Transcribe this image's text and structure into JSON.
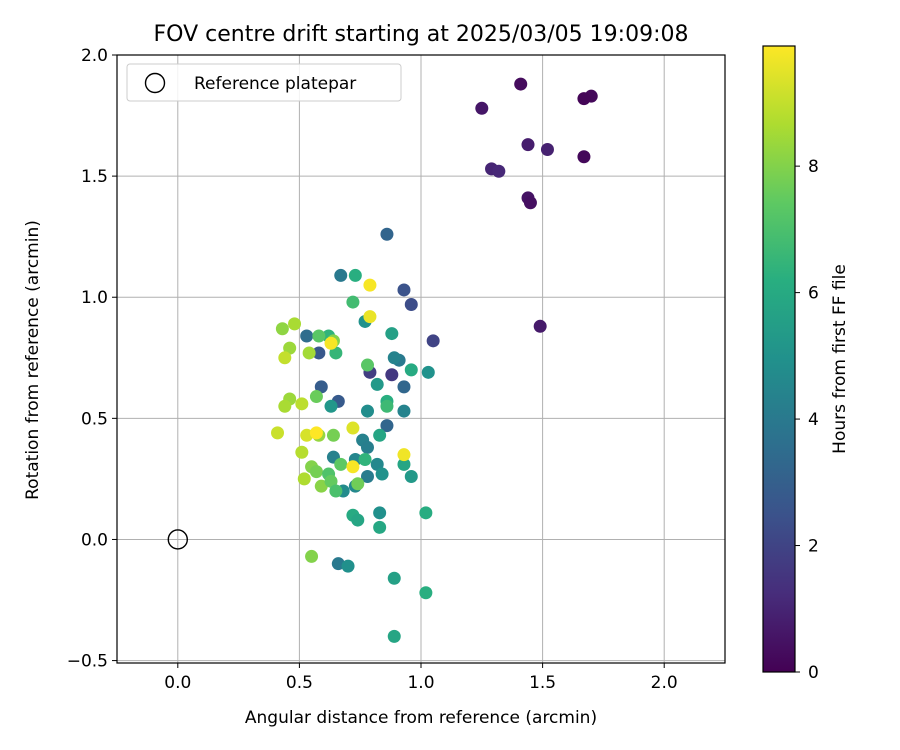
{
  "chart_data": {
    "type": "scatter",
    "title": "FOV centre drift starting at 2025/03/05 19:09:08",
    "xlabel": "Angular distance from reference (arcmin)",
    "ylabel": "Rotation from reference (arcmin)",
    "xlim": [
      -0.25,
      2.25
    ],
    "ylim": [
      -0.51,
      2.0
    ],
    "xticks": [
      0.0,
      0.5,
      1.0,
      1.5,
      2.0
    ],
    "xtick_labels": [
      "0.0",
      "0.5",
      "1.0",
      "1.5",
      "2.0"
    ],
    "yticks": [
      -0.5,
      0.0,
      0.5,
      1.0,
      1.5,
      2.0
    ],
    "ytick_labels": [
      "−0.5",
      "0.0",
      "0.5",
      "1.0",
      "1.5",
      "2.0"
    ],
    "grid": true,
    "legend": {
      "position": "top-left",
      "entries": [
        {
          "label": "Reference platepar",
          "marker": "open-circle"
        }
      ]
    },
    "reference_point": {
      "x": 0.0,
      "y": 0.0
    },
    "colorbar": {
      "label": "Hours from first FF file",
      "colormap": "viridis",
      "range": [
        0,
        9.9
      ],
      "ticks": [
        0,
        2,
        4,
        6,
        8
      ],
      "tick_labels": [
        "0",
        "2",
        "4",
        "6",
        "8"
      ]
    },
    "series": [
      {
        "points": [
          [
            1.41,
            1.88,
            0.3
          ],
          [
            1.7,
            1.83,
            0.2
          ],
          [
            1.67,
            1.82,
            0.1
          ],
          [
            1.25,
            1.78,
            0.6
          ],
          [
            1.44,
            1.63,
            0.8
          ],
          [
            1.52,
            1.61,
            0.9
          ],
          [
            1.67,
            1.58,
            0.2
          ],
          [
            1.29,
            1.53,
            1.0
          ],
          [
            1.32,
            1.52,
            1.1
          ],
          [
            1.44,
            1.41,
            0.5
          ],
          [
            1.45,
            1.39,
            0.4
          ],
          [
            1.49,
            0.88,
            0.7
          ],
          [
            0.86,
            1.26,
            3.2
          ],
          [
            0.93,
            1.03,
            2.5
          ],
          [
            0.96,
            0.97,
            2.3
          ],
          [
            1.05,
            0.82,
            2.0
          ],
          [
            0.53,
            0.84,
            3.5
          ],
          [
            0.58,
            0.77,
            2.7
          ],
          [
            0.88,
            0.68,
            1.6
          ],
          [
            0.79,
            0.69,
            1.8
          ],
          [
            0.59,
            0.63,
            2.9
          ],
          [
            0.93,
            0.63,
            3.3
          ],
          [
            0.66,
            0.57,
            2.8
          ],
          [
            0.86,
            0.47,
            3.2
          ],
          [
            0.67,
            1.09,
            4.0
          ],
          [
            0.73,
            1.09,
            6.2
          ],
          [
            0.72,
            0.98,
            6.8
          ],
          [
            0.77,
            0.9,
            5.0
          ],
          [
            0.88,
            0.85,
            5.6
          ],
          [
            0.91,
            0.74,
            4.0
          ],
          [
            0.89,
            0.75,
            4.4
          ],
          [
            0.96,
            0.7,
            6.0
          ],
          [
            1.03,
            0.69,
            5.0
          ],
          [
            0.82,
            0.64,
            5.3
          ],
          [
            0.86,
            0.57,
            6.2
          ],
          [
            0.86,
            0.55,
            6.7
          ],
          [
            0.78,
            0.53,
            4.8
          ],
          [
            0.93,
            0.53,
            4.4
          ],
          [
            0.83,
            0.43,
            5.8
          ],
          [
            0.76,
            0.41,
            4.3
          ],
          [
            0.78,
            0.38,
            4.2
          ],
          [
            0.73,
            0.33,
            4.5
          ],
          [
            0.82,
            0.31,
            4.6
          ],
          [
            0.93,
            0.31,
            5.8
          ],
          [
            0.78,
            0.26,
            4.1
          ],
          [
            0.84,
            0.27,
            5.0
          ],
          [
            0.96,
            0.26,
            5.3
          ],
          [
            0.73,
            0.22,
            4.6
          ],
          [
            0.68,
            0.2,
            4.7
          ],
          [
            0.64,
            0.34,
            4.3
          ],
          [
            0.83,
            0.11,
            4.9
          ],
          [
            0.83,
            0.05,
            5.9
          ],
          [
            0.72,
            0.1,
            6.0
          ],
          [
            0.74,
            0.08,
            5.8
          ],
          [
            1.02,
            0.11,
            6.1
          ],
          [
            0.66,
            -0.1,
            4.0
          ],
          [
            0.7,
            -0.11,
            4.9
          ],
          [
            0.89,
            -0.16,
            5.6
          ],
          [
            1.02,
            -0.22,
            6.2
          ],
          [
            0.89,
            -0.4,
            5.8
          ],
          [
            0.62,
            0.84,
            6.4
          ],
          [
            0.65,
            0.77,
            6.5
          ],
          [
            0.63,
            0.55,
            5.2
          ],
          [
            0.77,
            0.33,
            6.4
          ],
          [
            0.43,
            0.87,
            8.2
          ],
          [
            0.48,
            0.89,
            8.6
          ],
          [
            0.58,
            0.84,
            7.3
          ],
          [
            0.64,
            0.82,
            8.0
          ],
          [
            0.46,
            0.79,
            8.4
          ],
          [
            0.44,
            0.75,
            9.0
          ],
          [
            0.54,
            0.77,
            8.5
          ],
          [
            0.78,
            0.72,
            7.3
          ],
          [
            0.46,
            0.58,
            8.4
          ],
          [
            0.44,
            0.55,
            8.6
          ],
          [
            0.51,
            0.56,
            8.9
          ],
          [
            0.57,
            0.59,
            7.6
          ],
          [
            0.41,
            0.44,
            9.1
          ],
          [
            0.53,
            0.43,
            9.3
          ],
          [
            0.58,
            0.43,
            8.3
          ],
          [
            0.64,
            0.43,
            7.8
          ],
          [
            0.51,
            0.36,
            8.8
          ],
          [
            0.55,
            0.3,
            8.0
          ],
          [
            0.57,
            0.28,
            7.8
          ],
          [
            0.62,
            0.27,
            7.1
          ],
          [
            0.67,
            0.31,
            7.4
          ],
          [
            0.52,
            0.25,
            8.7
          ],
          [
            0.59,
            0.22,
            8.1
          ],
          [
            0.63,
            0.24,
            7.5
          ],
          [
            0.65,
            0.2,
            7.0
          ],
          [
            0.74,
            0.23,
            7.7
          ],
          [
            0.55,
            -0.07,
            8.0
          ],
          [
            0.63,
            0.81,
            9.8
          ],
          [
            0.79,
            1.05,
            9.8
          ],
          [
            0.79,
            0.92,
            9.6
          ],
          [
            0.72,
            0.46,
            9.4
          ],
          [
            0.57,
            0.44,
            9.9
          ],
          [
            0.72,
            0.3,
            9.8
          ],
          [
            0.93,
            0.35,
            9.7
          ]
        ]
      }
    ]
  }
}
